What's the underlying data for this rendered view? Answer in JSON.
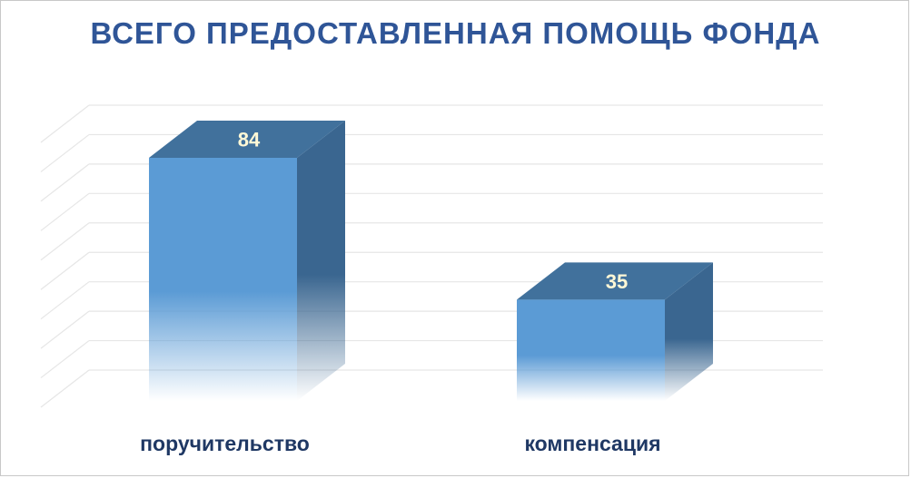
{
  "chart_data": {
    "type": "bar",
    "title": "ВСЕГО ПРЕДОСТАВЛЕННАЯ ПОМОЩЬ ФОНДА",
    "categories": [
      "поручительство",
      "компенсация"
    ],
    "values": [
      84,
      35
    ],
    "data_labels": [
      "84",
      "35"
    ],
    "ylim": [
      0,
      84
    ],
    "grid": true,
    "style": "3d-column",
    "colors": {
      "front": "#5b9bd5",
      "top": "#41719c",
      "side": "#3a6690",
      "title": "#2f5597",
      "category_text": "#1f3864",
      "value_text": "#fff8d6",
      "grid": "#e6e6e6"
    }
  }
}
